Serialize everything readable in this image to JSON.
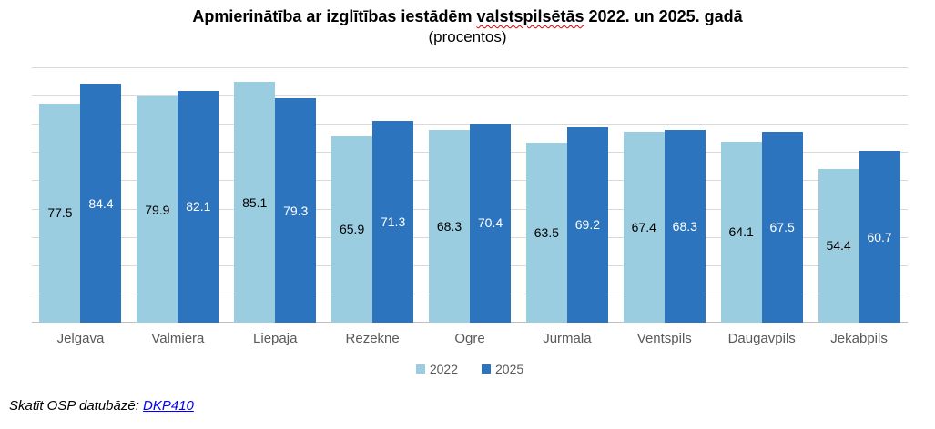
{
  "title": {
    "before": "Apmierinātība ar izglītības iestādēm ",
    "underlined_word": "valstspilsētās",
    "after": " 2022. un 2025. gadā",
    "subtitle": "(procentos)"
  },
  "colors": {
    "series_2022": "#9bcde0",
    "series_2025": "#2d74be",
    "gridline": "#d9d9d9",
    "axis_line": "#bfbfbf",
    "category_text": "#595959",
    "legend_text": "#595959",
    "link_blue": "#0000ff",
    "spellcheck_red": "#e00000",
    "value_label_on_light": "#000000",
    "value_label_on_dark": "#ffffff"
  },
  "legend": [
    {
      "label": "2022",
      "color": "#9bcde0"
    },
    {
      "label": "2025",
      "color": "#2d74be"
    }
  ],
  "footer": {
    "text": "Skatīt OSP datubāzē: ",
    "link_label": "DKP410"
  },
  "chart_data": {
    "type": "bar",
    "title": "Apmierinātība ar izglītības iestādēm valstspilsētās 2022. un 2025. gadā",
    "subtitle": "(procentos)",
    "categories": [
      "Jelgava",
      "Valmiera",
      "Liepāja",
      "Rēzekne",
      "Ogre",
      "Jūrmala",
      "Ventspils",
      "Daugavpils",
      "Jēkabpils"
    ],
    "series": [
      {
        "name": "2022",
        "color": "#9bcde0",
        "values": [
          77.5,
          79.9,
          85.1,
          65.9,
          68.3,
          63.5,
          67.4,
          64.1,
          54.4
        ]
      },
      {
        "name": "2025",
        "color": "#2d74be",
        "values": [
          84.4,
          82.1,
          79.3,
          71.3,
          70.4,
          69.2,
          68.3,
          67.5,
          60.7
        ]
      }
    ],
    "xlabel": "",
    "ylabel": "",
    "ylim": [
      0,
      90
    ],
    "gridline_step": 10,
    "grid": true,
    "y_axis_labels_visible": false,
    "legend_position": "bottom",
    "value_labels": "inside-center"
  }
}
